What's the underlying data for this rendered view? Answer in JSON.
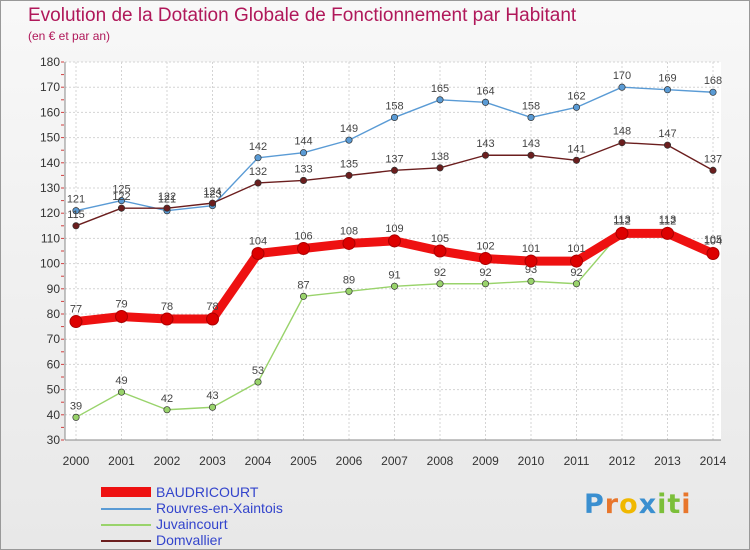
{
  "header": {
    "title": "Evolution de la Dotation Globale de Fonctionnement par Habitant",
    "subtitle": "(en € et par an)"
  },
  "logo": {
    "letters": [
      "P",
      "r",
      "o",
      "x",
      "i",
      "t",
      "i"
    ],
    "colors": [
      "#3a8fd0",
      "#e8762c",
      "#f0b800",
      "#3a8fd0",
      "#7cbf3a",
      "#7cbf3a",
      "#e8762c"
    ]
  },
  "chart_data": {
    "type": "line",
    "title": "Evolution de la Dotation Globale de Fonctionnement par Habitant",
    "subtitle": "(en € et par an)",
    "xlabel": "",
    "ylabel": "",
    "ylim": [
      30,
      180
    ],
    "yticks": [
      30,
      40,
      50,
      60,
      70,
      80,
      90,
      100,
      110,
      120,
      130,
      140,
      150,
      160,
      170,
      180
    ],
    "grid": true,
    "legend_position": "bottom-left",
    "categories": [
      "2000",
      "2001",
      "2002",
      "2003",
      "2004",
      "2005",
      "2006",
      "2007",
      "2008",
      "2009",
      "2010",
      "2011",
      "2012",
      "2013",
      "2014"
    ],
    "series": [
      {
        "name": "Rouvres-en-Xaintois",
        "color": "#5a9bd5",
        "values": [
          121,
          125,
          121,
          123,
          142,
          144,
          149,
          158,
          165,
          164,
          158,
          162,
          170,
          169,
          168
        ]
      },
      {
        "name": "Domvallier",
        "color": "#6b1e1e",
        "values": [
          115,
          122,
          122,
          124,
          132,
          133,
          135,
          137,
          138,
          143,
          143,
          141,
          148,
          147,
          137
        ]
      },
      {
        "name": "Juvaincourt",
        "color": "#99d36b",
        "values": [
          39,
          49,
          42,
          43,
          53,
          87,
          89,
          91,
          92,
          92,
          93,
          92,
          113,
          113,
          105
        ]
      },
      {
        "name": "BAUDRICOURT",
        "color": "#ee1111",
        "values": [
          77,
          79,
          78,
          78,
          104,
          106,
          108,
          109,
          105,
          102,
          101,
          101,
          112,
          112,
          104
        ]
      }
    ],
    "legend": [
      "BAUDRICOURT",
      "Rouvres-en-Xaintois",
      "Juvaincourt",
      "Domvallier"
    ]
  }
}
